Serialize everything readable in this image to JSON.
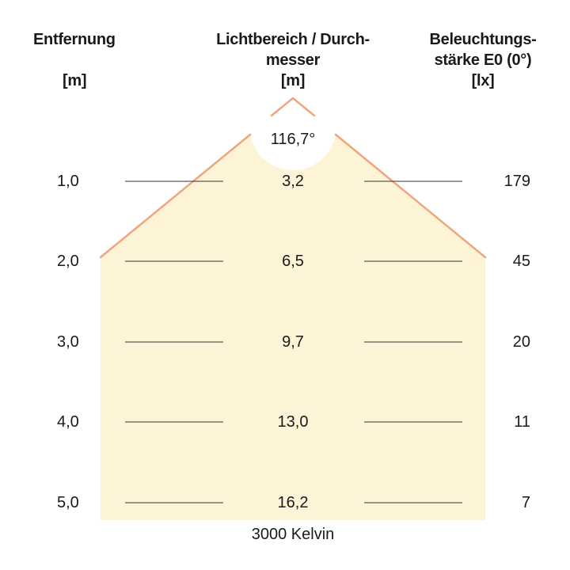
{
  "headers": {
    "distance": {
      "title": "Entfernung",
      "unit": "[m]"
    },
    "diameter": {
      "title_line1": "Lichtbereich / Durch-",
      "title_line2": "messer",
      "unit": "[m]"
    },
    "illuminance": {
      "title_line1": "Beleuchtungs-",
      "title_line2": "stärke E0 (0°)",
      "unit": "[lx]"
    }
  },
  "beam_angle": "116,7°",
  "rows": [
    {
      "distance": "1,0",
      "diameter": "3,2",
      "lux": "179"
    },
    {
      "distance": "2,0",
      "diameter": "6,5",
      "lux": "45"
    },
    {
      "distance": "3,0",
      "diameter": "9,7",
      "lux": "20"
    },
    {
      "distance": "4,0",
      "diameter": "13,0",
      "lux": "11"
    },
    {
      "distance": "5,0",
      "diameter": "16,2",
      "lux": "7"
    }
  ],
  "footer": "3000 Kelvin",
  "colors": {
    "cone_fill": "#fdf4d7",
    "cone_edge": "#f0a67c",
    "rule_line": "#333333"
  }
}
